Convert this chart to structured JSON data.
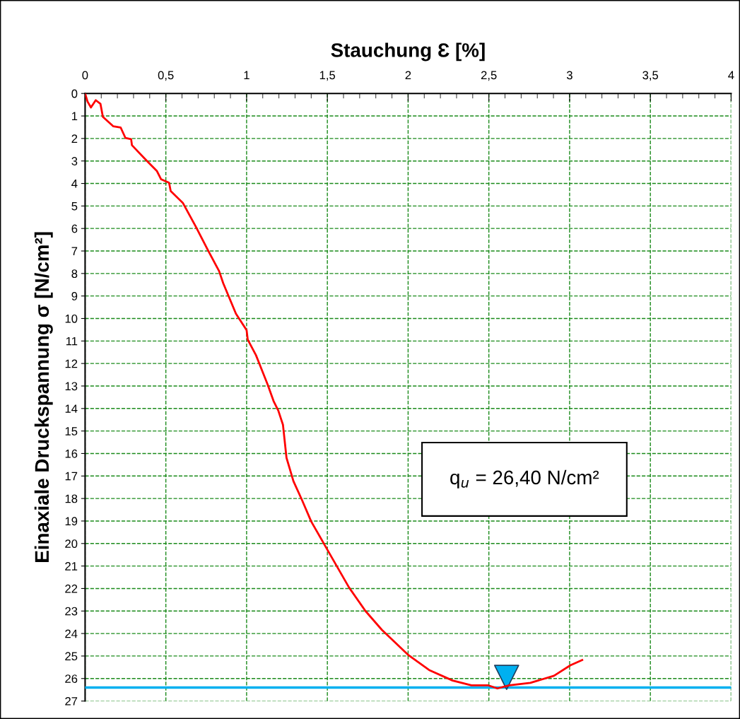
{
  "chart_data": {
    "type": "line",
    "xlabel": "Stauchung Ɛ [%]",
    "ylabel": "Einaxiale Druckspannung σ [N/cm²]",
    "xlim": [
      0,
      4
    ],
    "xticks": [
      0,
      {
        "value": 0.5,
        "label": "0,5"
      },
      1,
      {
        "value": 1.5,
        "label": "1,5"
      },
      2,
      {
        "value": 2.5,
        "label": "2,5"
      },
      3,
      {
        "value": 3.5,
        "label": "3,5"
      },
      4
    ],
    "ylim": [
      27,
      0
    ],
    "yticks": [
      0,
      1,
      2,
      3,
      4,
      5,
      6,
      7,
      8,
      9,
      10,
      11,
      12,
      13,
      14,
      15,
      16,
      17,
      18,
      19,
      20,
      21,
      22,
      23,
      24,
      25,
      26,
      27
    ],
    "grid": true,
    "legend": false,
    "marker": "none",
    "line_style": "solid",
    "series": [
      {
        "color": "#ff0000",
        "x": [
          0,
          0.015,
          0.036,
          0.066,
          0.095,
          0.11,
          0.175,
          0.22,
          0.25,
          0.285,
          0.29,
          0.38,
          0.445,
          0.47,
          0.52,
          0.53,
          0.605,
          0.685,
          0.76,
          0.83,
          0.855,
          0.934,
          1.0,
          1.007,
          1.058,
          1.13,
          1.167,
          1.196,
          1.225,
          1.247,
          1.29,
          1.342,
          1.4,
          1.502,
          1.634,
          1.736,
          1.838,
          1.999,
          2.13,
          2.276,
          2.392,
          2.494,
          2.553,
          2.626,
          2.757,
          2.903,
          3.005,
          3.078
        ],
        "values": [
          0,
          0.36,
          0.62,
          0.3,
          0.46,
          1.04,
          1.46,
          1.51,
          1.98,
          2.03,
          2.3,
          2.98,
          3.45,
          3.81,
          3.97,
          4.34,
          4.86,
          5.91,
          6.96,
          7.9,
          8.43,
          9.79,
          10.52,
          10.94,
          11.63,
          12.93,
          13.67,
          14.09,
          14.72,
          16.19,
          17.23,
          18.05,
          19.02,
          20.3,
          21.95,
          23.0,
          23.84,
          24.94,
          25.62,
          26.09,
          26.3,
          26.3,
          26.44,
          26.3,
          26.19,
          25.88,
          25.41,
          25.18
        ]
      },
      {
        "type": "scatter",
        "marker": "triangle",
        "color": "#00b0f0",
        "x": [
          2.61
        ],
        "values": [
          25.95
        ]
      }
    ],
    "ref_lines": [
      {
        "axis": "y",
        "value": 26.4,
        "color": "#00b0f0",
        "line_style": "solid"
      }
    ],
    "annotations": [
      "q$_{u}$ = 26,40 N/cm²"
    ]
  }
}
